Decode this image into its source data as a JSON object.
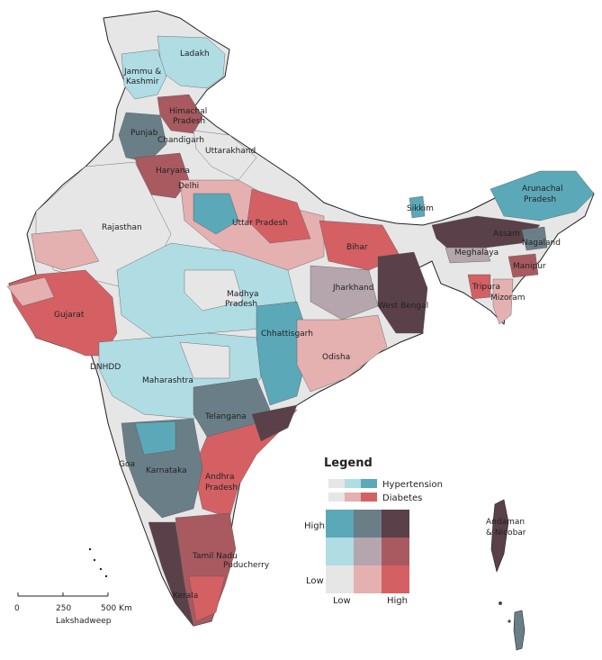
{
  "map": {
    "region_labels": [
      "Ladakh",
      "Jammu &",
      "Kashmir",
      "Himachal",
      "Pradesh",
      "Punjab",
      "Chandigarh",
      "Uttarakhand",
      "Haryana",
      "Delhi",
      "Rajasthan",
      "Uttar Pradesh",
      "Sikkim",
      "Arunachal",
      "Pradesh",
      "Assam",
      "Nagaland",
      "Meghalaya",
      "Manipur",
      "Tripura",
      "Mizoram",
      "Bihar",
      "Jharkhand",
      "West Bengal",
      "Gujarat",
      "Madhya",
      "Pradesh",
      "Chhattisgarh",
      "Odisha",
      "DNHDD",
      "Maharashtra",
      "Telangana",
      "Goa",
      "Karnataka",
      "Andhra",
      "Pradesh",
      "Tamil Nadu",
      "Puducherry",
      "Kerala",
      "Andaman",
      "& Nicobar",
      "Lakshadweep"
    ]
  },
  "legend": {
    "title": "Legend",
    "series": [
      "Hypertension",
      "Diabetes"
    ],
    "y_high": "High",
    "y_low": "Low",
    "x_low": "Low",
    "x_high": "High",
    "grid_colors": [
      [
        "#5ba8b8",
        "#6a7e88",
        "#5a4048"
      ],
      [
        "#b0dce4",
        "#b4a6ac",
        "#a85a60"
      ],
      [
        "#e6e6e6",
        "#e4b0b0",
        "#d46064"
      ]
    ],
    "hypertension_ramp": [
      "#e6e6e6",
      "#b0dce4",
      "#5ba8b8"
    ],
    "diabetes_ramp": [
      "#e6e6e6",
      "#e4b0b0",
      "#d46064"
    ]
  },
  "scale_bar": {
    "ticks": [
      "0",
      "250",
      "500 Km"
    ]
  },
  "colors": {
    "background": "#ffffff",
    "border": "#222222",
    "low_low": "#e6e6e6",
    "high_ht": "#5ba8b8",
    "high_db": "#d46064",
    "high_both": "#5a4048"
  }
}
